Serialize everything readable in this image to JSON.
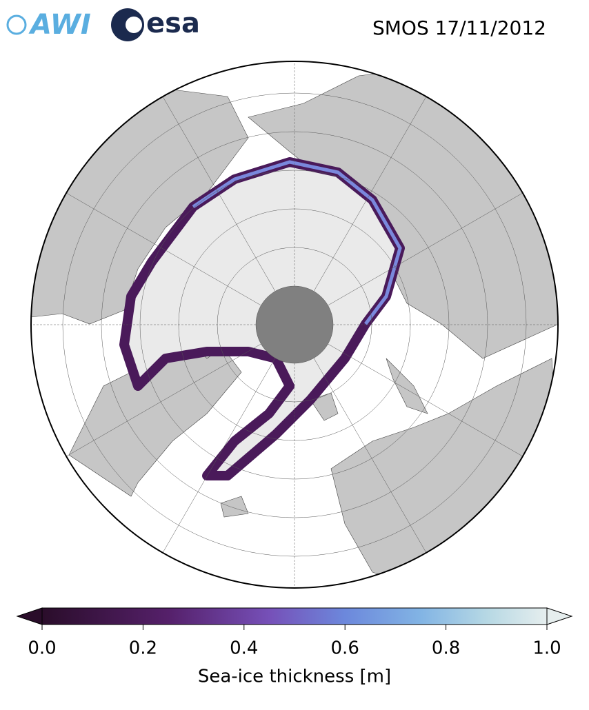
{
  "logos": {
    "awi": "AWI",
    "esa": "esa"
  },
  "title": "SMOS 17/11/2012",
  "colorbar": {
    "label": "Sea-ice thickness [m]",
    "range": [
      0,
      1.0
    ],
    "ticks": [
      {
        "value": 0,
        "label": "0.0"
      },
      0.2,
      0.4,
      0.6,
      0.8,
      {
        "value": 1,
        "label": "1.0"
      }
    ]
  }
}
